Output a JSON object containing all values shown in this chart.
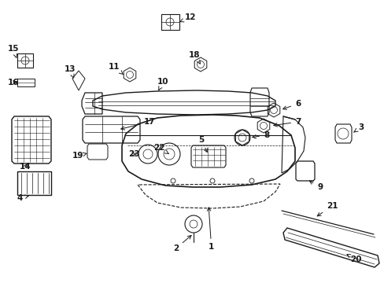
{
  "bg_color": "#ffffff",
  "line_color": "#1a1a1a",
  "figsize": [
    4.89,
    3.6
  ],
  "dpi": 100
}
